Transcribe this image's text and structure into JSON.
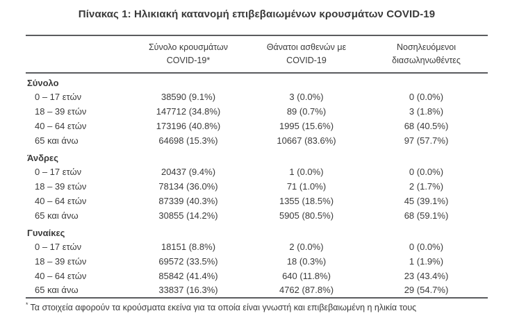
{
  "title": "Πίνακας 1: Ηλικιακή κατανομή επιβεβαιωμένων κρουσμάτων COVID-19",
  "table": {
    "columns": [
      {
        "line1": "Σύνολο κρουσμάτων",
        "line2": "COVID-19*"
      },
      {
        "line1": "Θάνατοι ασθενών με",
        "line2": "COVID-19"
      },
      {
        "line1": "Νοσηλευόμενοι",
        "line2": "διασωληνωθέντες"
      }
    ],
    "sections": [
      {
        "label": "Σύνολο",
        "rows": [
          {
            "age": "0 – 17 ετών",
            "cases": "38590 (9.1%)",
            "deaths": "3 (0.0%)",
            "intubated": "0 (0.0%)"
          },
          {
            "age": "18 – 39 ετών",
            "cases": "147712 (34.8%)",
            "deaths": "89 (0.7%)",
            "intubated": "3 (1.8%)"
          },
          {
            "age": "40 – 64 ετών",
            "cases": "173196 (40.8%)",
            "deaths": "1995 (15.6%)",
            "intubated": "68 (40.5%)"
          },
          {
            "age": "65 και άνω",
            "cases": "64698 (15.3%)",
            "deaths": "10667 (83.6%)",
            "intubated": "97 (57.7%)"
          }
        ]
      },
      {
        "label": "Άνδρες",
        "rows": [
          {
            "age": "0 – 17 ετών",
            "cases": "20437 (9.4%)",
            "deaths": "1 (0.0%)",
            "intubated": "0 (0.0%)"
          },
          {
            "age": "18 – 39 ετών",
            "cases": "78134 (36.0%)",
            "deaths": "71 (1.0%)",
            "intubated": "2 (1.7%)"
          },
          {
            "age": "40 – 64 ετών",
            "cases": "87339 (40.3%)",
            "deaths": "1355 (18.5%)",
            "intubated": "45 (39.1%)"
          },
          {
            "age": "65 και άνω",
            "cases": "30855 (14.2%)",
            "deaths": "5905 (80.5%)",
            "intubated": "68 (59.1%)"
          }
        ]
      },
      {
        "label": "Γυναίκες",
        "rows": [
          {
            "age": "0 – 17 ετών",
            "cases": "18151 (8.8%)",
            "deaths": "2 (0.0%)",
            "intubated": "0 (0.0%)"
          },
          {
            "age": "18 – 39 ετών",
            "cases": "69572 (33.5%)",
            "deaths": "18 (0.3%)",
            "intubated": "1 (1.9%)"
          },
          {
            "age": "40 – 64 ετών",
            "cases": "85842 (41.4%)",
            "deaths": "640 (11.8%)",
            "intubated": "23 (43.4%)"
          },
          {
            "age": "65 και άνω",
            "cases": "33837 (16.3%)",
            "deaths": "4762 (87.8%)",
            "intubated": "29 (54.7%)"
          }
        ]
      }
    ]
  },
  "footnote": {
    "marker": "*",
    "text": "Τα στοιχεία αφορούν τα κρούσματα εκείνα για τα οποία είναι γνωστή και επιβεβαιωμένη η ηλικία τους"
  },
  "colors": {
    "text": "#3a3a3a",
    "rule": "#5a5b5e",
    "background": "#ffffff"
  }
}
